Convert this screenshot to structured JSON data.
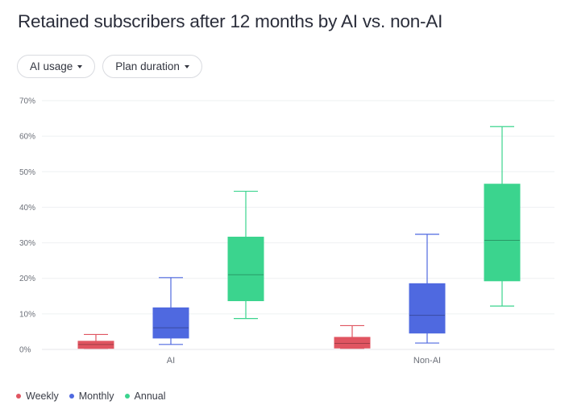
{
  "title": "Retained subscribers after 12 months by AI vs. non-AI",
  "filters": [
    {
      "label": "AI usage"
    },
    {
      "label": "Plan duration"
    }
  ],
  "chart_data": {
    "type": "boxplot",
    "title": "Retained subscribers after 12 months by AI vs. non-AI",
    "xlabel": "",
    "ylabel": "",
    "ylim": [
      0,
      70
    ],
    "yticks": [
      "0%",
      "10%",
      "20%",
      "30%",
      "40%",
      "50%",
      "60%",
      "70%"
    ],
    "categories": [
      "AI",
      "Non-AI"
    ],
    "grid": true,
    "legend_position": "bottom-left",
    "series": [
      {
        "name": "Weekly",
        "color": "#e05561",
        "boxes": [
          {
            "min": 0.3,
            "q1": 0.3,
            "median": 1.4,
            "q3": 2.3,
            "max": 4.2
          },
          {
            "min": 0.3,
            "q1": 0.4,
            "median": 1.7,
            "q3": 3.4,
            "max": 6.7
          }
        ]
      },
      {
        "name": "Monthly",
        "color": "#4f69e0",
        "boxes": [
          {
            "min": 1.4,
            "q1": 3.2,
            "median": 6.1,
            "q3": 11.7,
            "max": 20.2
          },
          {
            "min": 1.8,
            "q1": 4.6,
            "median": 9.6,
            "q3": 18.5,
            "max": 32.4
          }
        ]
      },
      {
        "name": "Annual",
        "color": "#3bd48e",
        "boxes": [
          {
            "min": 8.7,
            "q1": 13.7,
            "median": 21.0,
            "q3": 31.6,
            "max": 44.5
          },
          {
            "min": 12.2,
            "q1": 19.3,
            "median": 30.7,
            "q3": 46.5,
            "max": 62.7
          }
        ]
      }
    ]
  }
}
